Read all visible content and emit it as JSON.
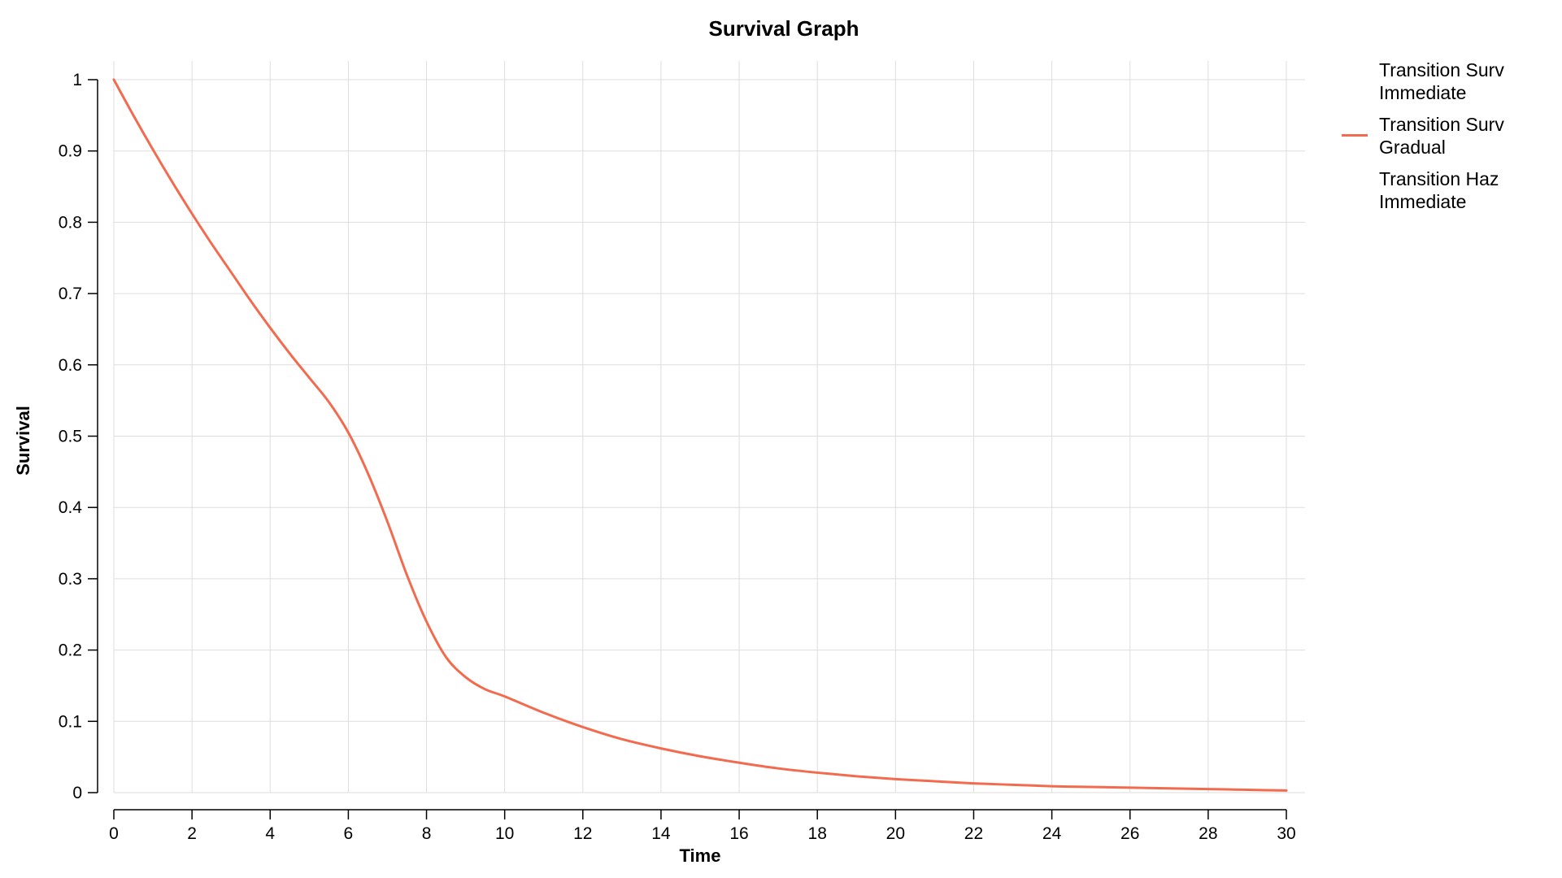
{
  "chart_data": {
    "type": "line",
    "title": "Survival Graph",
    "xlabel": "Time",
    "ylabel": "Survival",
    "xlim": [
      0,
      30
    ],
    "ylim": [
      0,
      1
    ],
    "xticks": [
      0,
      2,
      4,
      6,
      8,
      10,
      12,
      14,
      16,
      18,
      20,
      22,
      24,
      26,
      28,
      30
    ],
    "yticks": [
      0,
      0.1,
      0.2,
      0.3,
      0.4,
      0.5,
      0.6,
      0.7,
      0.8,
      0.9,
      1
    ],
    "grid": true,
    "legend_position": "top-right outside",
    "series": [
      {
        "name": "Transition Surv Immediate",
        "color": "",
        "values": []
      },
      {
        "name": "Transition Surv Gradual",
        "color": "#f26b4f",
        "x": [
          0,
          0.5,
          1,
          1.5,
          2,
          2.5,
          3,
          3.5,
          4,
          4.5,
          5,
          5.5,
          6,
          6.5,
          7,
          7.5,
          8,
          8.5,
          9,
          9.5,
          10,
          11,
          12,
          13,
          14,
          15,
          16,
          17,
          18,
          19,
          20,
          21,
          22,
          23,
          24,
          25,
          26,
          27,
          28,
          29,
          30
        ],
        "values": [
          1.0,
          0.95,
          0.902,
          0.856,
          0.812,
          0.77,
          0.73,
          0.69,
          0.652,
          0.616,
          0.582,
          0.548,
          0.505,
          0.448,
          0.38,
          0.305,
          0.24,
          0.19,
          0.162,
          0.145,
          0.135,
          0.112,
          0.092,
          0.075,
          0.062,
          0.051,
          0.042,
          0.034,
          0.028,
          0.023,
          0.019,
          0.016,
          0.013,
          0.011,
          0.009,
          0.008,
          0.007,
          0.006,
          0.005,
          0.004,
          0.003
        ]
      },
      {
        "name": "Transition Haz Immediate",
        "color": "",
        "values": []
      }
    ]
  }
}
